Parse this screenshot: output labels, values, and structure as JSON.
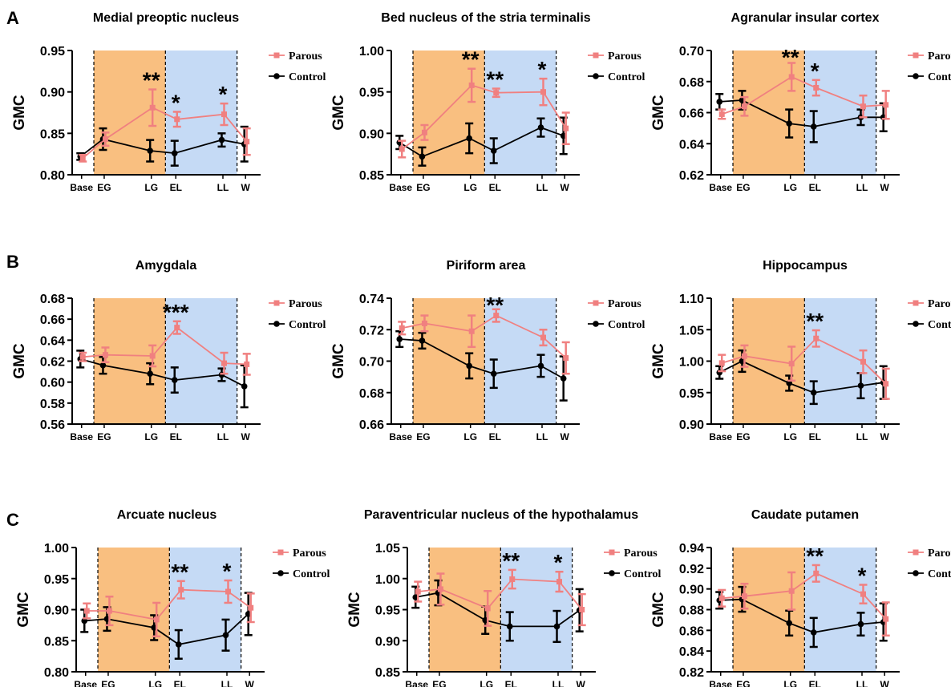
{
  "sections": [
    "A",
    "B",
    "C"
  ],
  "colors": {
    "parous": "#f08080",
    "control": "#000000",
    "pregnancy_shade": "#f9bf80",
    "lactation_shade": "#c5daf5"
  },
  "series_names": [
    "Parous",
    "Control"
  ],
  "chart_data": [
    {
      "type": "line",
      "section": "A",
      "title": "Medial preoptic nucleus",
      "ylabel": "GMC",
      "x": [
        "Base",
        "EG",
        "LG",
        "EL",
        "LL",
        "W"
      ],
      "ylim": [
        0.8,
        0.95
      ],
      "yticks": [
        "0.80",
        "0.85",
        "0.90",
        "0.95"
      ],
      "series": [
        {
          "name": "Parous",
          "values": [
            0.82,
            0.843,
            0.881,
            0.867,
            0.873,
            0.84
          ],
          "err": [
            0.004,
            0.008,
            0.022,
            0.009,
            0.013,
            0.016
          ]
        },
        {
          "name": "Control",
          "values": [
            0.822,
            0.843,
            0.829,
            0.826,
            0.842,
            0.837
          ],
          "err": [
            0.004,
            0.013,
            0.013,
            0.015,
            0.008,
            0.021
          ]
        }
      ],
      "annotations": [
        {
          "x": "LG",
          "text": "**"
        },
        {
          "x": "EL",
          "text": "*"
        },
        {
          "x": "LL",
          "text": "*"
        }
      ]
    },
    {
      "type": "line",
      "section": "A",
      "title": "Bed nucleus of the stria terminalis",
      "ylabel": "GMC",
      "x": [
        "Base",
        "EG",
        "LG",
        "EL",
        "LL",
        "W"
      ],
      "ylim": [
        0.85,
        1.0
      ],
      "yticks": [
        "0.85",
        "0.90",
        "0.95",
        "1.00"
      ],
      "series": [
        {
          "name": "Parous",
          "values": [
            0.881,
            0.901,
            0.958,
            0.949,
            0.95,
            0.906
          ],
          "err": [
            0.01,
            0.009,
            0.02,
            0.005,
            0.016,
            0.019
          ]
        },
        {
          "name": "Control",
          "values": [
            0.889,
            0.872,
            0.894,
            0.879,
            0.907,
            0.897
          ],
          "err": [
            0.008,
            0.011,
            0.018,
            0.015,
            0.011,
            0.022
          ]
        }
      ],
      "annotations": [
        {
          "x": "LG",
          "text": "**"
        },
        {
          "x": "EL",
          "text": "**"
        },
        {
          "x": "LL",
          "text": "*"
        }
      ]
    },
    {
      "type": "line",
      "section": "A",
      "title": "Agranular insular cortex",
      "ylabel": "GMC",
      "x": [
        "Base",
        "EG",
        "LG",
        "EL",
        "LL",
        "W"
      ],
      "ylim": [
        0.62,
        0.7
      ],
      "yticks": [
        "0.62",
        "0.64",
        "0.66",
        "0.68",
        "0.70"
      ],
      "series": [
        {
          "name": "Parous",
          "values": [
            0.659,
            0.664,
            0.683,
            0.676,
            0.664,
            0.665
          ],
          "err": [
            0.003,
            0.006,
            0.009,
            0.005,
            0.007,
            0.009
          ]
        },
        {
          "name": "Control",
          "values": [
            0.667,
            0.668,
            0.653,
            0.651,
            0.657,
            0.657
          ],
          "err": [
            0.005,
            0.006,
            0.009,
            0.01,
            0.005,
            0.009
          ]
        }
      ],
      "annotations": [
        {
          "x": "LG",
          "text": "**"
        },
        {
          "x": "EL",
          "text": "*"
        }
      ]
    },
    {
      "type": "line",
      "section": "B",
      "title": "Amygdala",
      "ylabel": "GMC",
      "x": [
        "Base",
        "EG",
        "LG",
        "EL",
        "LL",
        "W"
      ],
      "ylim": [
        0.56,
        0.68
      ],
      "yticks": [
        "0.56",
        "0.58",
        "0.60",
        "0.62",
        "0.64",
        "0.66",
        "0.68"
      ],
      "series": [
        {
          "name": "Parous",
          "values": [
            0.624,
            0.626,
            0.625,
            0.652,
            0.618,
            0.617
          ],
          "err": [
            0.004,
            0.007,
            0.01,
            0.006,
            0.01,
            0.01
          ]
        },
        {
          "name": "Control",
          "values": [
            0.622,
            0.616,
            0.608,
            0.602,
            0.607,
            0.596
          ],
          "err": [
            0.008,
            0.008,
            0.01,
            0.012,
            0.006,
            0.02
          ]
        }
      ],
      "annotations": [
        {
          "x": "EL",
          "text": "***"
        }
      ]
    },
    {
      "type": "line",
      "section": "B",
      "title": "Piriform area",
      "ylabel": "GMC",
      "x": [
        "Base",
        "EG",
        "LG",
        "EL",
        "LL",
        "W"
      ],
      "ylim": [
        0.66,
        0.74
      ],
      "yticks": [
        "0.66",
        "0.68",
        "0.70",
        "0.72",
        "0.74"
      ],
      "series": [
        {
          "name": "Parous",
          "values": [
            0.721,
            0.724,
            0.719,
            0.729,
            0.715,
            0.702
          ],
          "err": [
            0.004,
            0.005,
            0.01,
            0.004,
            0.005,
            0.01
          ]
        },
        {
          "name": "Control",
          "values": [
            0.714,
            0.713,
            0.697,
            0.692,
            0.697,
            0.689
          ],
          "err": [
            0.005,
            0.005,
            0.008,
            0.009,
            0.007,
            0.014
          ]
        }
      ],
      "annotations": [
        {
          "x": "EL",
          "text": "**"
        }
      ]
    },
    {
      "type": "line",
      "section": "B",
      "title": "Hippocampus",
      "ylabel": "GMC",
      "x": [
        "Base",
        "EG",
        "LG",
        "EL",
        "LL",
        "W"
      ],
      "ylim": [
        0.9,
        1.1
      ],
      "yticks": [
        "0.90",
        "0.95",
        "1.00",
        "1.05",
        "1.10"
      ],
      "series": [
        {
          "name": "Parous",
          "values": [
            0.997,
            1.008,
            0.996,
            1.036,
            0.999,
            0.964
          ],
          "err": [
            0.013,
            0.017,
            0.027,
            0.013,
            0.018,
            0.024
          ]
        },
        {
          "name": "Control",
          "values": [
            0.982,
            1.0,
            0.965,
            0.95,
            0.961,
            0.966
          ],
          "err": [
            0.01,
            0.017,
            0.012,
            0.018,
            0.02,
            0.026
          ]
        }
      ],
      "annotations": [
        {
          "x": "EL",
          "text": "**"
        }
      ]
    },
    {
      "type": "line",
      "section": "C",
      "title": "Arcuate nucleus",
      "ylabel": "GMC",
      "x": [
        "Base",
        "EG",
        "LG",
        "EL",
        "LL",
        "W"
      ],
      "ylim": [
        0.8,
        1.0
      ],
      "yticks": [
        "0.80",
        "0.85",
        "0.90",
        "0.95",
        "1.00"
      ],
      "series": [
        {
          "name": "Parous",
          "values": [
            0.898,
            0.898,
            0.884,
            0.932,
            0.929,
            0.903
          ],
          "err": [
            0.012,
            0.023,
            0.027,
            0.014,
            0.018,
            0.023
          ]
        },
        {
          "name": "Control",
          "values": [
            0.882,
            0.885,
            0.871,
            0.844,
            0.859,
            0.893
          ],
          "err": [
            0.018,
            0.019,
            0.02,
            0.023,
            0.025,
            0.034
          ]
        }
      ],
      "annotations": [
        {
          "x": "EL",
          "text": "**"
        },
        {
          "x": "LL",
          "text": "*"
        }
      ]
    },
    {
      "type": "line",
      "section": "C",
      "title": "Paraventricular nucleus of the hypothalamus",
      "ylabel": "GMC",
      "x": [
        "Base",
        "EG",
        "LG",
        "EL",
        "LL",
        "W"
      ],
      "ylim": [
        0.85,
        1.05
      ],
      "yticks": [
        "0.85",
        "0.90",
        "0.95",
        "1.00",
        "1.05"
      ],
      "series": [
        {
          "name": "Parous",
          "values": [
            0.979,
            0.983,
            0.952,
            0.999,
            0.995,
            0.95
          ],
          "err": [
            0.016,
            0.025,
            0.028,
            0.015,
            0.016,
            0.025
          ]
        },
        {
          "name": "Control",
          "values": [
            0.97,
            0.977,
            0.933,
            0.923,
            0.923,
            0.949
          ],
          "err": [
            0.017,
            0.02,
            0.022,
            0.023,
            0.025,
            0.034
          ]
        }
      ],
      "annotations": [
        {
          "x": "EL",
          "text": "**"
        },
        {
          "x": "LL",
          "text": "*"
        }
      ]
    },
    {
      "type": "line",
      "section": "C",
      "title": "Caudate putamen",
      "ylabel": "GMC",
      "x": [
        "Base",
        "EG",
        "LG",
        "EL",
        "LL",
        "W"
      ],
      "ylim": [
        0.82,
        0.94
      ],
      "yticks": [
        "0.82",
        "0.84",
        "0.86",
        "0.88",
        "0.90",
        "0.92",
        "0.94"
      ],
      "series": [
        {
          "name": "Parous",
          "values": [
            0.891,
            0.893,
            0.898,
            0.915,
            0.895,
            0.871
          ],
          "err": [
            0.008,
            0.012,
            0.018,
            0.008,
            0.009,
            0.016
          ]
        },
        {
          "name": "Control",
          "values": [
            0.889,
            0.89,
            0.867,
            0.858,
            0.866,
            0.868
          ],
          "err": [
            0.008,
            0.012,
            0.012,
            0.014,
            0.011,
            0.018
          ]
        }
      ],
      "annotations": [
        {
          "x": "EL",
          "text": "**"
        },
        {
          "x": "LL",
          "text": "*"
        }
      ]
    }
  ]
}
